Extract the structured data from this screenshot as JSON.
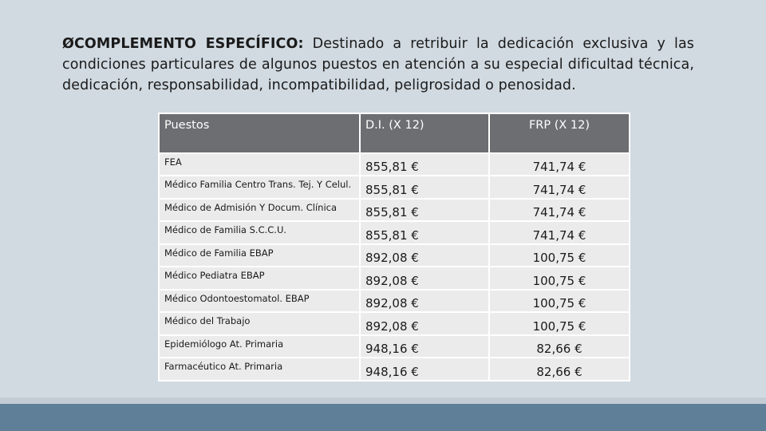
{
  "text": {
    "bullet": "Ø",
    "lead": "COMPLEMENTO ESPECÍFICO:",
    "body": " Destinado a retribuir la dedicación exclusiva y las condiciones particulares de algunos puestos en atención a su especial dificultad técnica, dedicación, responsabilidad, incompatibilidad, peligrosidad o penosidad."
  },
  "table": {
    "headers": [
      "Puestos",
      "D.I. (X 12)",
      "FRP (X 12)"
    ],
    "rows": [
      {
        "puesto": "FEA",
        "di": "855,81 €",
        "frp": "741,74 €"
      },
      {
        "puesto": "Médico Familia Centro Trans. Tej. Y Celul.",
        "di": "855,81 €",
        "frp": "741,74 €"
      },
      {
        "puesto": "Médico de Admisión Y Docum. Clínica",
        "di": "855,81 €",
        "frp": "741,74 €"
      },
      {
        "puesto": "Médico de Familia S.C.C.U.",
        "di": "855,81 €",
        "frp": "741,74 €"
      },
      {
        "puesto": "Médico de Familia EBAP",
        "di": "892,08 €",
        "frp": "100,75 €"
      },
      {
        "puesto": "Médico Pediatra EBAP",
        "di": "892,08 €",
        "frp": "100,75 €"
      },
      {
        "puesto": "Médico Odontoestomatol. EBAP",
        "di": "892,08 €",
        "frp": "100,75 €"
      },
      {
        "puesto": "Médico del Trabajo",
        "di": "892,08 €",
        "frp": "100,75 €"
      },
      {
        "puesto": "Epidemiólogo At. Primaria",
        "di": "948,16 €",
        "frp": "82,66 €"
      },
      {
        "puesto": "Farmacéutico At. Primaria",
        "di": "948,16 €",
        "frp": "82,66 €"
      }
    ]
  },
  "colors": {
    "background": "#d1dae1",
    "header_fill": "#6d6e72",
    "row_fill": "#ebebeb",
    "footer_bar": "#5f7f99"
  }
}
